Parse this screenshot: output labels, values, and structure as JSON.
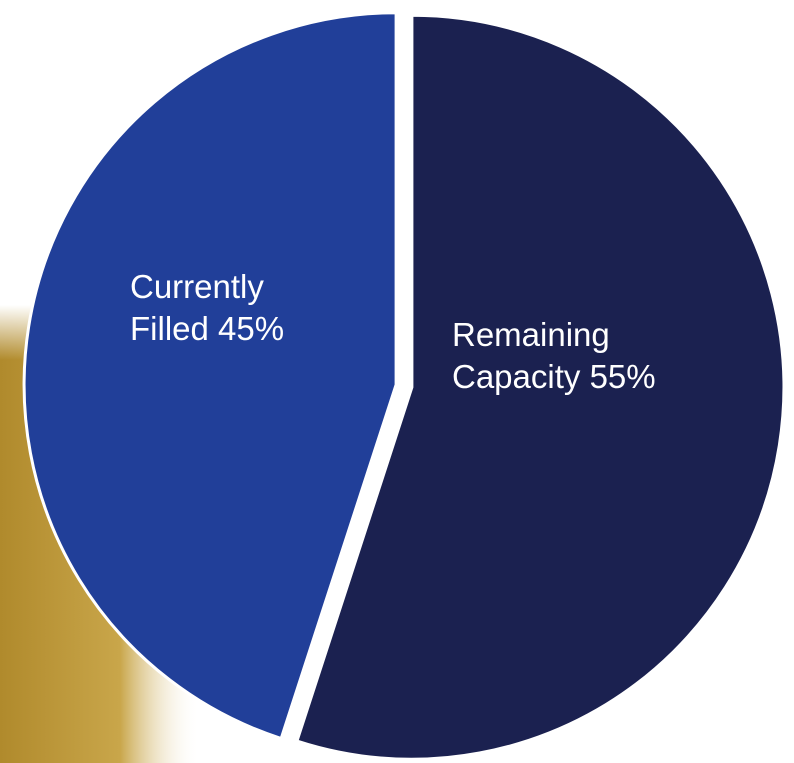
{
  "chart_data": {
    "type": "pie",
    "categories": [
      "Remaining Capacity",
      "Currently Filled"
    ],
    "values": [
      55,
      45
    ],
    "value_labels": [
      "55%",
      "45%"
    ],
    "colors": [
      "#1b2150",
      "#213f99"
    ]
  }
}
